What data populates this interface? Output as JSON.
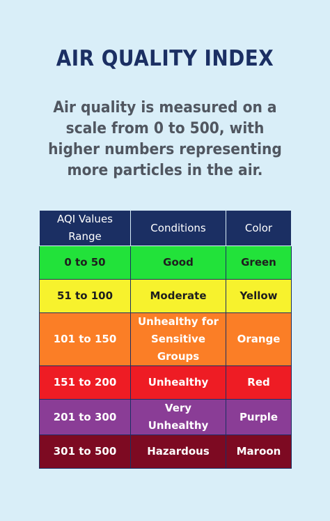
{
  "title": "AIR QUALITY INDEX",
  "description": "Air quality is measured on a scale from 0 to 500, with higher numbers representing more particles in the air.",
  "table": {
    "headers": [
      "AQI Values Range",
      "Conditions",
      "Color"
    ],
    "rows": [
      {
        "range": "0 to 50",
        "condition": "Good",
        "color_name": "Green",
        "bg": "#22e23a",
        "fg": "#1e1e1e"
      },
      {
        "range": "51 to 100",
        "condition": "Moderate",
        "color_name": "Yellow",
        "bg": "#f7f22d",
        "fg": "#1e1e1e"
      },
      {
        "range": "101 to 150",
        "condition": "Unhealthy for Sensitive Groups",
        "color_name": "Orange",
        "bg": "#fb7e26",
        "fg": "#ffffff"
      },
      {
        "range": "151 to 200",
        "condition": "Unhealthy",
        "color_name": "Red",
        "bg": "#ee1c24",
        "fg": "#ffffff"
      },
      {
        "range": "201 to 300",
        "condition": "Very Unhealthy",
        "color_name": "Purple",
        "bg": "#8a3d96",
        "fg": "#ffffff"
      },
      {
        "range": "301 to 500",
        "condition": "Hazardous",
        "color_name": "Maroon",
        "bg": "#7d0a22",
        "fg": "#ffffff"
      }
    ]
  }
}
